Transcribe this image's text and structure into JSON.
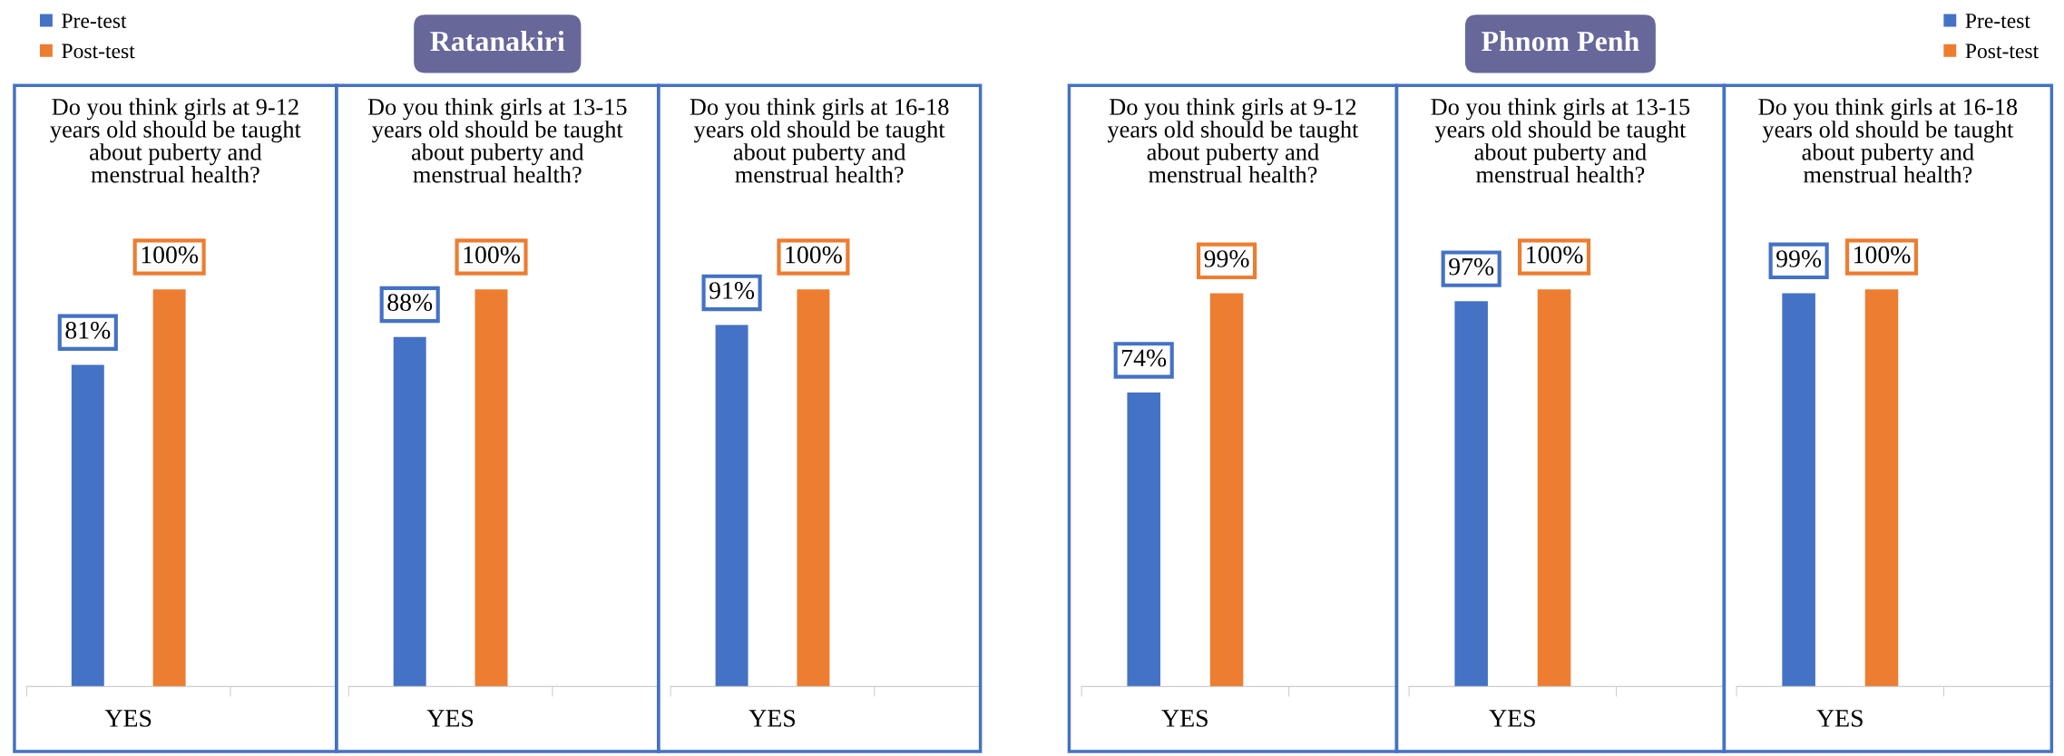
{
  "chart_data": [
    {
      "type": "bar",
      "title": "Do you think girls at 9-12\nyears old should be taught\nabout puberty and\nmenstrual health?",
      "annotations": [
        "Ratanakiri"
      ],
      "legend": "top left",
      "categories": [
        "YES"
      ],
      "series": [
        {
          "name": "Pre-test",
          "color": "#4472c4",
          "values": [
            81
          ],
          "value_labels": [
            "81%"
          ]
        },
        {
          "name": "Post-test",
          "color": "#ed7d31",
          "values": [
            100
          ],
          "value_labels": [
            "100%"
          ]
        }
      ]
    },
    {
      "type": "bar",
      "title": "Do you think girls at 13-15\nyears old should be taught\nabout puberty and\nmenstrual health?",
      "categories": [
        "YES"
      ],
      "series": [
        {
          "color": "#4472c4",
          "values": [
            88
          ],
          "value_labels": [
            "88%"
          ]
        },
        {
          "color": "#ed7d31",
          "values": [
            100
          ],
          "value_labels": [
            "100%"
          ]
        }
      ]
    },
    {
      "type": "bar",
      "title": "Do you think girls at 16-18\nyears old should be taught\nabout puberty and\nmenstrual health?",
      "categories": [
        "YES"
      ],
      "series": [
        {
          "color": "#4472c4",
          "values": [
            91
          ],
          "value_labels": [
            "91%"
          ]
        },
        {
          "color": "#ed7d31",
          "values": [
            100
          ],
          "value_labels": [
            "100%"
          ]
        }
      ]
    },
    {
      "type": "bar",
      "title": "Do you think girls at 9-12\nyears old should be taught\nabout puberty and\nmenstrual health?",
      "annotations": [
        "Phnom Penh"
      ],
      "legend": "top right",
      "categories": [
        "YES"
      ],
      "series": [
        {
          "name": "Pre-test",
          "color": "#4472c4",
          "values": [
            74
          ],
          "value_labels": [
            "74%"
          ]
        },
        {
          "name": "Post-test",
          "color": "#ed7d31",
          "values": [
            99
          ],
          "value_labels": [
            "99%"
          ]
        }
      ]
    },
    {
      "type": "bar",
      "title": "Do you think girls at 13-15\nyears old should be taught\nabout puberty and\nmenstrual health?",
      "categories": [
        "YES"
      ],
      "series": [
        {
          "color": "#4472c4",
          "values": [
            97
          ],
          "value_labels": [
            "97%"
          ]
        },
        {
          "color": "#ed7d31",
          "values": [
            100
          ],
          "value_labels": [
            "100%"
          ]
        }
      ]
    },
    {
      "type": "bar",
      "title": "Do you think girls at 16-18\nyears old should be taught\nabout puberty and\nmenstrual health?",
      "categories": [
        "YES"
      ],
      "series": [
        {
          "color": "#4472c4",
          "values": [
            99
          ],
          "value_labels": [
            "99%"
          ]
        },
        {
          "color": "#ed7d31",
          "values": [
            100
          ],
          "value_labels": [
            "100%"
          ]
        }
      ]
    }
  ]
}
